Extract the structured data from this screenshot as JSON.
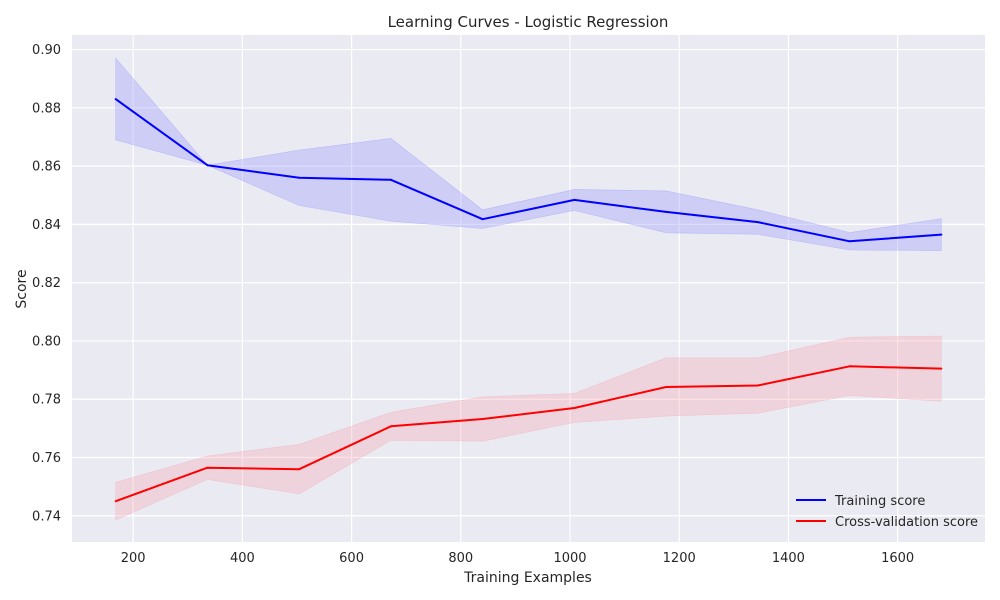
{
  "chart_data": {
    "type": "line",
    "title": "Learning Curves - Logistic Regression",
    "xlabel": "Training Examples",
    "ylabel": "Score",
    "xlim": [
      88,
      1760
    ],
    "ylim": [
      0.731,
      0.905
    ],
    "xticks": [
      200,
      400,
      600,
      800,
      1000,
      1200,
      1400,
      1600
    ],
    "yticks": [
      0.74,
      0.76,
      0.78,
      0.8,
      0.82,
      0.84,
      0.86,
      0.88,
      0.9
    ],
    "ytick_labels": [
      "0.74",
      "0.76",
      "0.78",
      "0.80",
      "0.82",
      "0.84",
      "0.86",
      "0.88",
      "0.90"
    ],
    "grid": true,
    "legend_position": "bottom-right",
    "background": "#eaeaf2",
    "x": [
      168,
      336,
      504,
      672,
      840,
      1008,
      1176,
      1344,
      1512,
      1680
    ],
    "series": [
      {
        "name": "Training score",
        "color": "#0000ff",
        "band_color": "#8c8cff",
        "values": [
          0.883,
          0.8603,
          0.856,
          0.8553,
          0.8418,
          0.8484,
          0.8443,
          0.8408,
          0.8342,
          0.8365
        ],
        "upper": [
          0.897,
          0.8603,
          0.8655,
          0.8695,
          0.845,
          0.852,
          0.8515,
          0.845,
          0.8372,
          0.842
        ],
        "lower": [
          0.869,
          0.8603,
          0.8465,
          0.8411,
          0.8386,
          0.8448,
          0.8371,
          0.8366,
          0.8312,
          0.831
        ]
      },
      {
        "name": "Cross-validation score",
        "color": "#ff0000",
        "band_color": "#f7a0a8",
        "values": [
          0.745,
          0.7565,
          0.756,
          0.7707,
          0.7732,
          0.777,
          0.7842,
          0.7847,
          0.7913,
          0.7905
        ],
        "upper": [
          0.7515,
          0.7605,
          0.7645,
          0.7755,
          0.7808,
          0.782,
          0.7942,
          0.7942,
          0.8013,
          0.8017
        ],
        "lower": [
          0.7385,
          0.7525,
          0.7475,
          0.7659,
          0.7656,
          0.772,
          0.7742,
          0.7752,
          0.7813,
          0.7793
        ]
      }
    ]
  }
}
